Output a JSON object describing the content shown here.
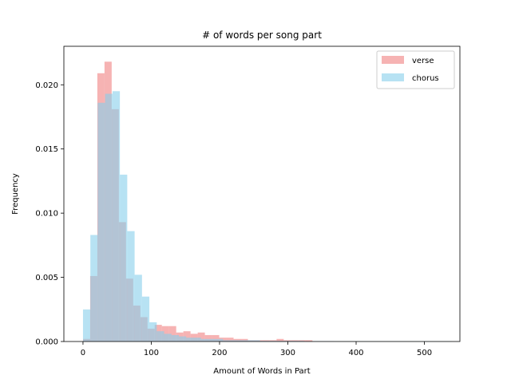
{
  "chart_data": {
    "type": "bar",
    "title": "# of words per song part",
    "xlabel": "Amount of Words in Part",
    "ylabel": "Frequency",
    "xlim": [
      -28,
      552
    ],
    "ylim": [
      0,
      0.023
    ],
    "xticks": [
      0,
      100,
      200,
      300,
      400,
      500
    ],
    "yticks": [
      0.0,
      0.005,
      0.01,
      0.015,
      0.02
    ],
    "xtick_labels": [
      "0",
      "100",
      "200",
      "300",
      "400",
      "500"
    ],
    "ytick_labels": [
      "0.000",
      "0.005",
      "0.010",
      "0.015",
      "0.020"
    ],
    "grid": false,
    "legend_position": "top-right",
    "series": [
      {
        "name": "verse",
        "color": "#f08080",
        "opacity": 0.6,
        "bin_edges": [
          0,
          10.5,
          21,
          31.5,
          42,
          52.5,
          63,
          73.5,
          84,
          94.5,
          105,
          115.5,
          126,
          136.5,
          147,
          157.5,
          168,
          178.5,
          189,
          199.5,
          210,
          220.5,
          231,
          241.5,
          252,
          262.5,
          273,
          283.5,
          294,
          304.5,
          315,
          325.5,
          336
        ],
        "values": [
          0.0002,
          0.0051,
          0.0209,
          0.0218,
          0.0181,
          0.0093,
          0.0049,
          0.0028,
          0.0019,
          0.001,
          0.0013,
          0.0012,
          0.0012,
          0.0007,
          0.0008,
          0.0006,
          0.0007,
          0.0005,
          0.0005,
          0.0003,
          0.0003,
          0.0002,
          0.0002,
          0.0001,
          0.0001,
          0.0001,
          0.0001,
          0.0002,
          0.0001,
          0.0001,
          0.0001,
          0.0001
        ]
      },
      {
        "name": "chorus",
        "color": "#87ceeb",
        "opacity": 0.6,
        "bin_edges": [
          0,
          10.8,
          21.6,
          32.4,
          43.2,
          54,
          64.8,
          75.6,
          86.4,
          97.2,
          108,
          118.8,
          129.6,
          140.4,
          151.2,
          162,
          172.8,
          183.6,
          194.4,
          205.2,
          216,
          226.8,
          237.6,
          248.4,
          259.2,
          270,
          280.8,
          291.6,
          302.4,
          313.2,
          324,
          334.8,
          345.6,
          356.4,
          367.2,
          378,
          388.8,
          399.6,
          410.4,
          421.2,
          432,
          442.8,
          453.6,
          464.4,
          475.2,
          486,
          496.8,
          507.6,
          518.4,
          529.2,
          540
        ],
        "values": [
          0.0025,
          0.0083,
          0.0186,
          0.0193,
          0.0195,
          0.013,
          0.0086,
          0.0052,
          0.0035,
          0.0015,
          0.0008,
          0.0006,
          0.0005,
          0.0004,
          0.0003,
          0.0003,
          0.0002,
          0.0002,
          0.0002,
          0.0001,
          0.0001,
          0.0001,
          0.0001,
          0.0001,
          5e-05,
          5e-05,
          5e-05,
          5e-05,
          5e-05,
          5e-05,
          3e-05,
          3e-05,
          3e-05,
          3e-05,
          2e-05,
          2e-05,
          2e-05,
          2e-05,
          2e-05,
          2e-05,
          2e-05,
          2e-05,
          2e-05,
          2e-05,
          2e-05,
          2e-05,
          2e-05,
          2e-05,
          2e-05,
          2e-05
        ]
      }
    ]
  }
}
